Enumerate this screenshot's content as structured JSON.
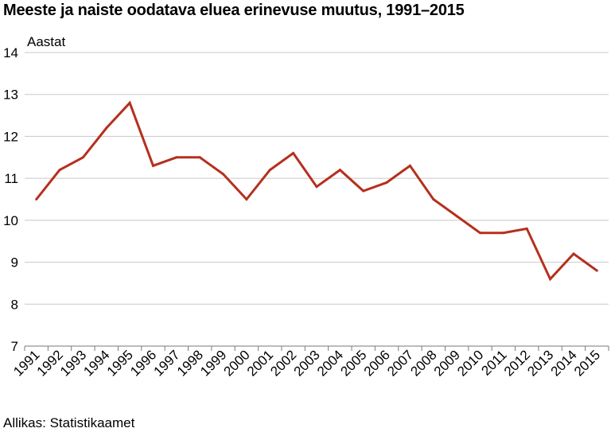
{
  "chart_data": {
    "type": "line",
    "title": "Meeste ja naiste oodatava eluea erinevuse muutus, 1991–2015",
    "ylabel": "Aastat",
    "xlabel": "",
    "source": "Allikas: Statistikaamet",
    "ylim": [
      7,
      14
    ],
    "yticks": [
      7,
      8,
      9,
      10,
      11,
      12,
      13,
      14
    ],
    "grid": true,
    "x": [
      "1991",
      "1992",
      "1993",
      "1994",
      "1995",
      "1996",
      "1997",
      "1998",
      "1999",
      "2000",
      "2001",
      "2002",
      "2003",
      "2004",
      "2005",
      "2006",
      "2007",
      "2008",
      "2009",
      "2010",
      "2011",
      "2012",
      "2013",
      "2014",
      "2015"
    ],
    "series": [
      {
        "values": [
          10.5,
          11.2,
          11.5,
          12.2,
          12.8,
          11.3,
          11.5,
          11.5,
          11.1,
          10.5,
          11.2,
          11.6,
          10.8,
          11.2,
          10.7,
          10.9,
          11.3,
          10.5,
          10.1,
          9.7,
          9.7,
          9.8,
          8.6,
          9.2,
          8.8
        ],
        "color": "#b5301e"
      }
    ]
  }
}
